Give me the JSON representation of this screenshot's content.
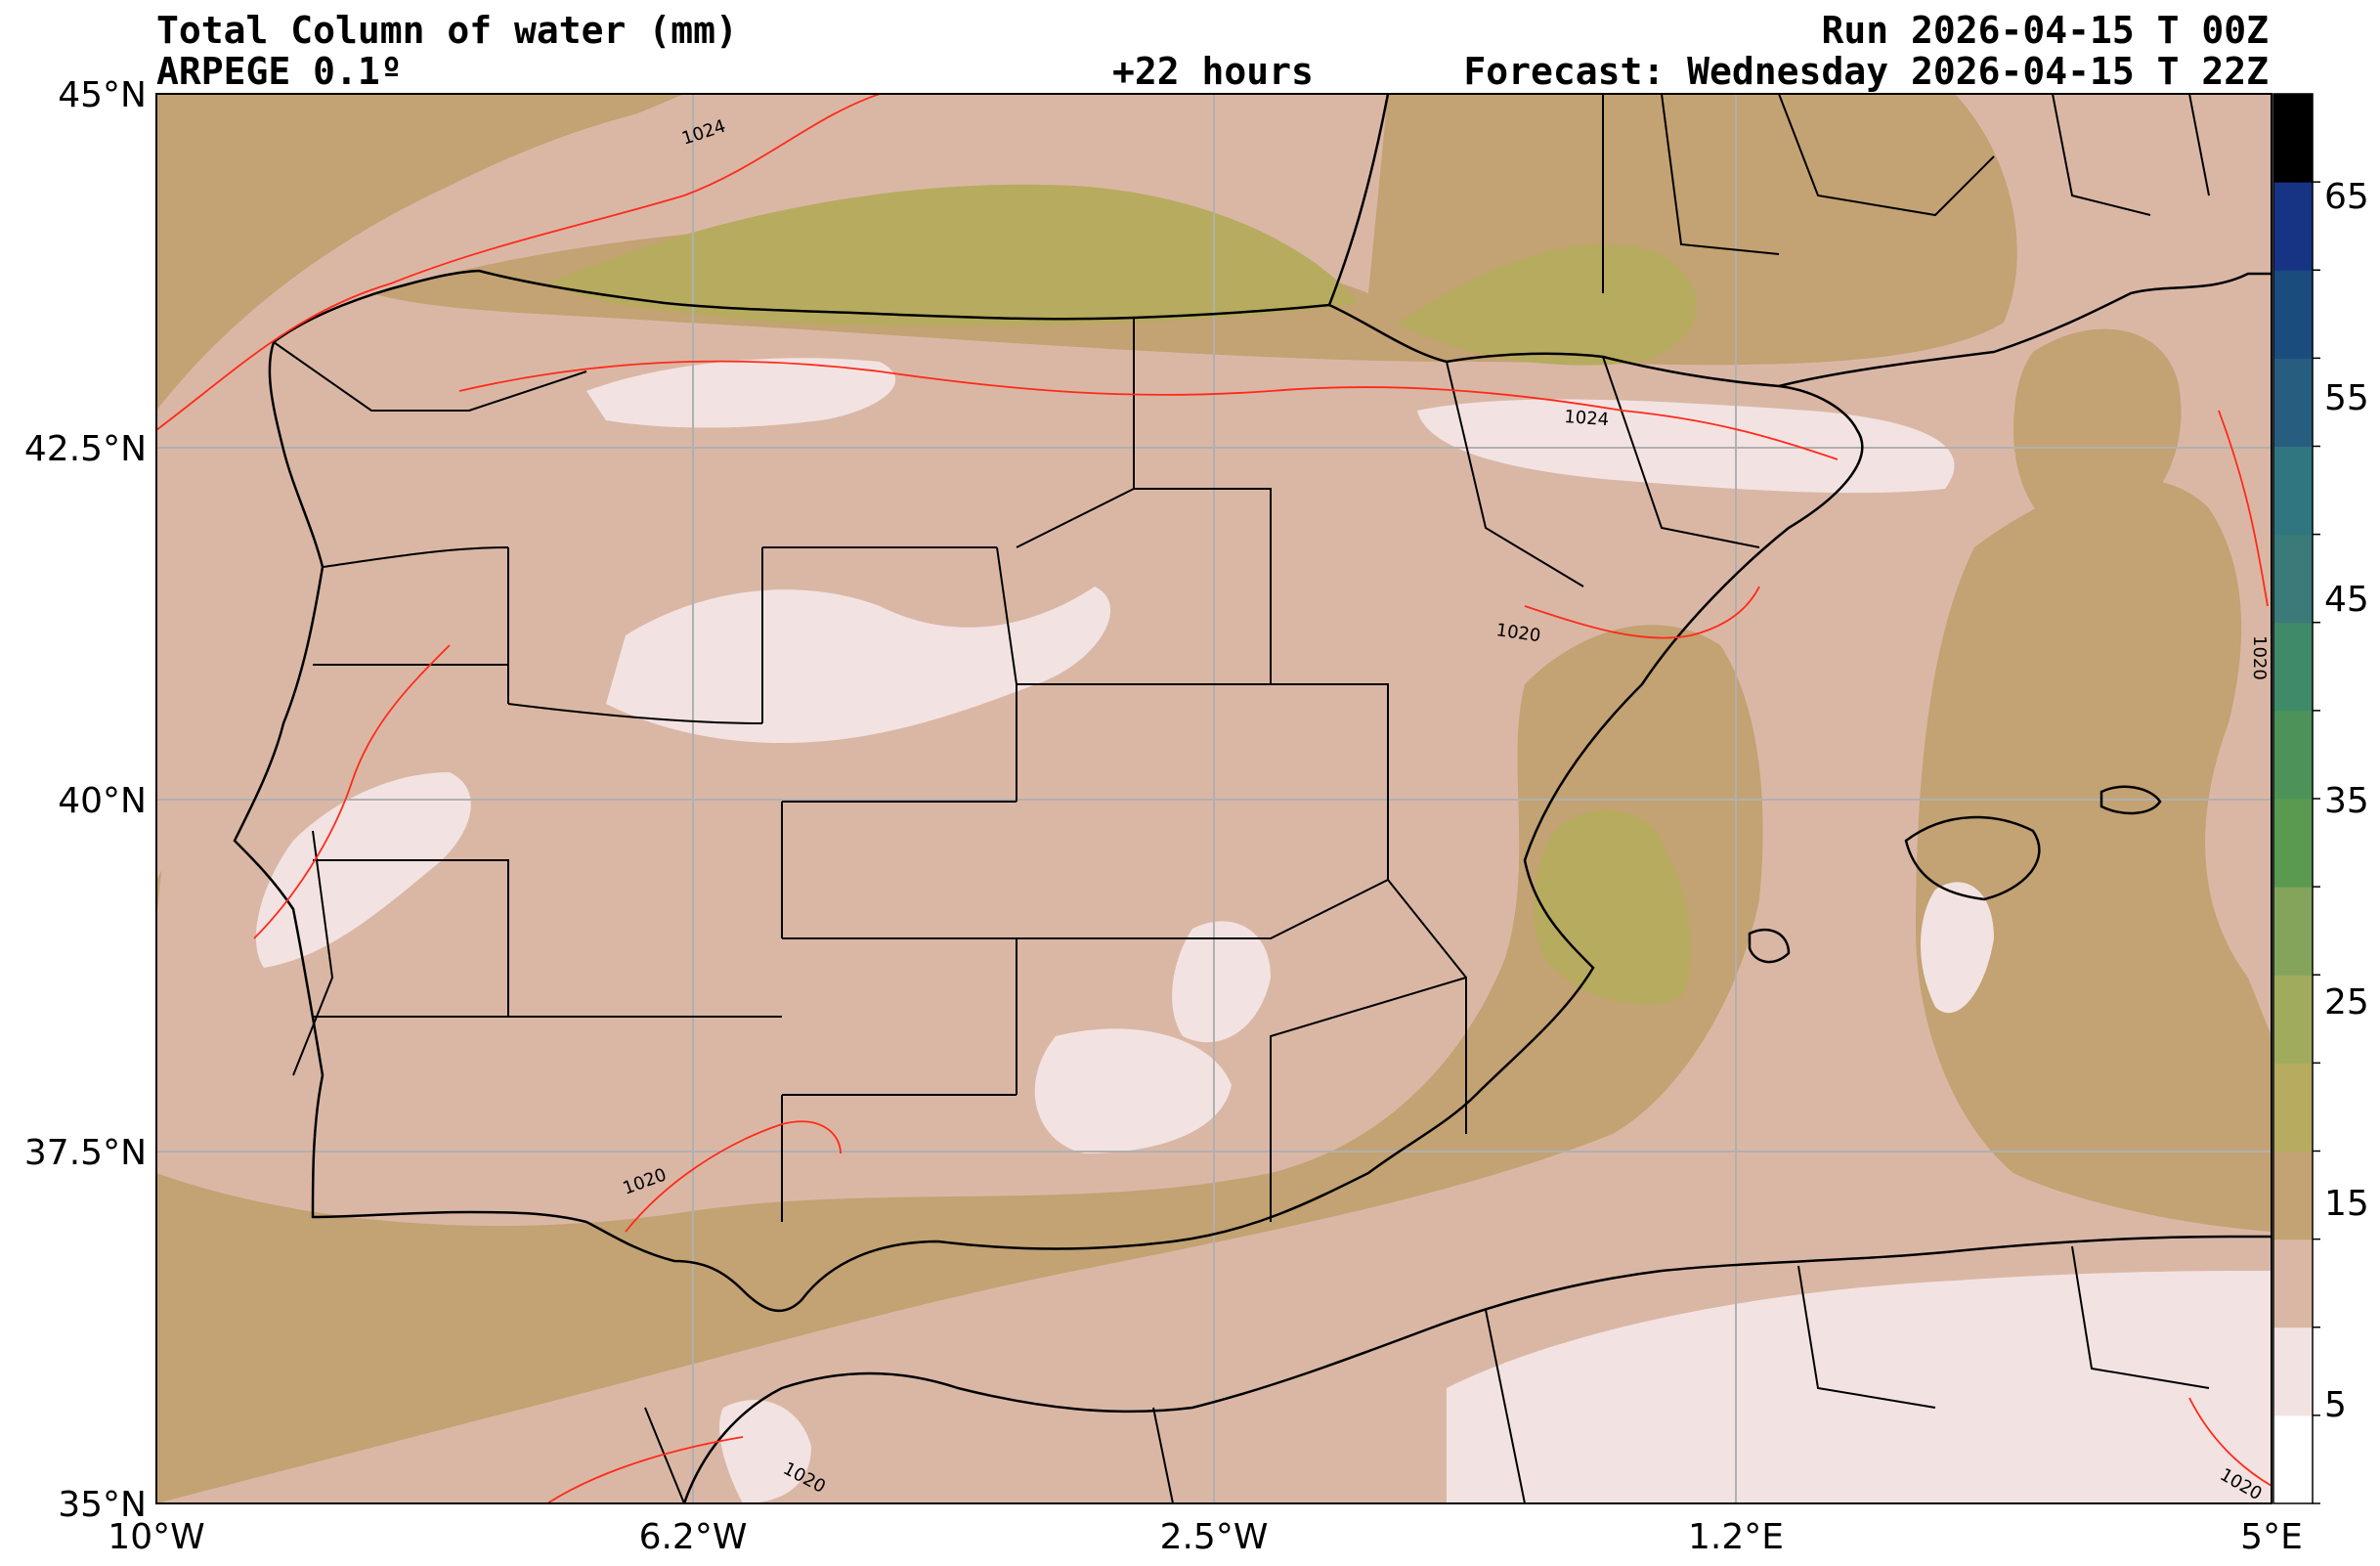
{
  "header": {
    "title": "Total Column of water (mm)",
    "model": "ARPEGE 0.1º",
    "lead_time": "+22 hours",
    "run": "Run 2026-04-15 T 00Z",
    "forecast": "Forecast: Wednesday 2026-04-15 T 22Z"
  },
  "axes": {
    "lon_ticks": [
      "10°W",
      "6.2°W",
      "2.5°W",
      "1.2°E",
      "5°E"
    ],
    "lat_ticks": [
      "45°N",
      "42.5°N",
      "40°N",
      "37.5°N",
      "35°N"
    ]
  },
  "colorbar": {
    "tick_labels": [
      "5",
      "15",
      "25",
      "35",
      "45",
      "55",
      "65"
    ],
    "colors": [
      "#ffffff",
      "#f2e3e2",
      "#dab7a5",
      "#c3a273",
      "#b7ab5f",
      "#a0ab5e",
      "#84a45b",
      "#5a9a50",
      "#4d9359",
      "#3f8a68",
      "#3a7a78",
      "#2f7680",
      "#275d7e",
      "#1a4c7e",
      "#173383",
      "#000000"
    ]
  },
  "isobars": {
    "labels": [
      "1024",
      "1024",
      "1020",
      "1020",
      "1020",
      "1020",
      "1020"
    ]
  },
  "legend_colors": {
    "ocean_base": "#c3a273",
    "land_base": "#dab7a5",
    "dry_patches": "#f2e3e2",
    "moist_band": "#b7ab5f",
    "isobar": "#ff2a1a",
    "borders": "#000000",
    "grid": "#b0b0b0"
  }
}
